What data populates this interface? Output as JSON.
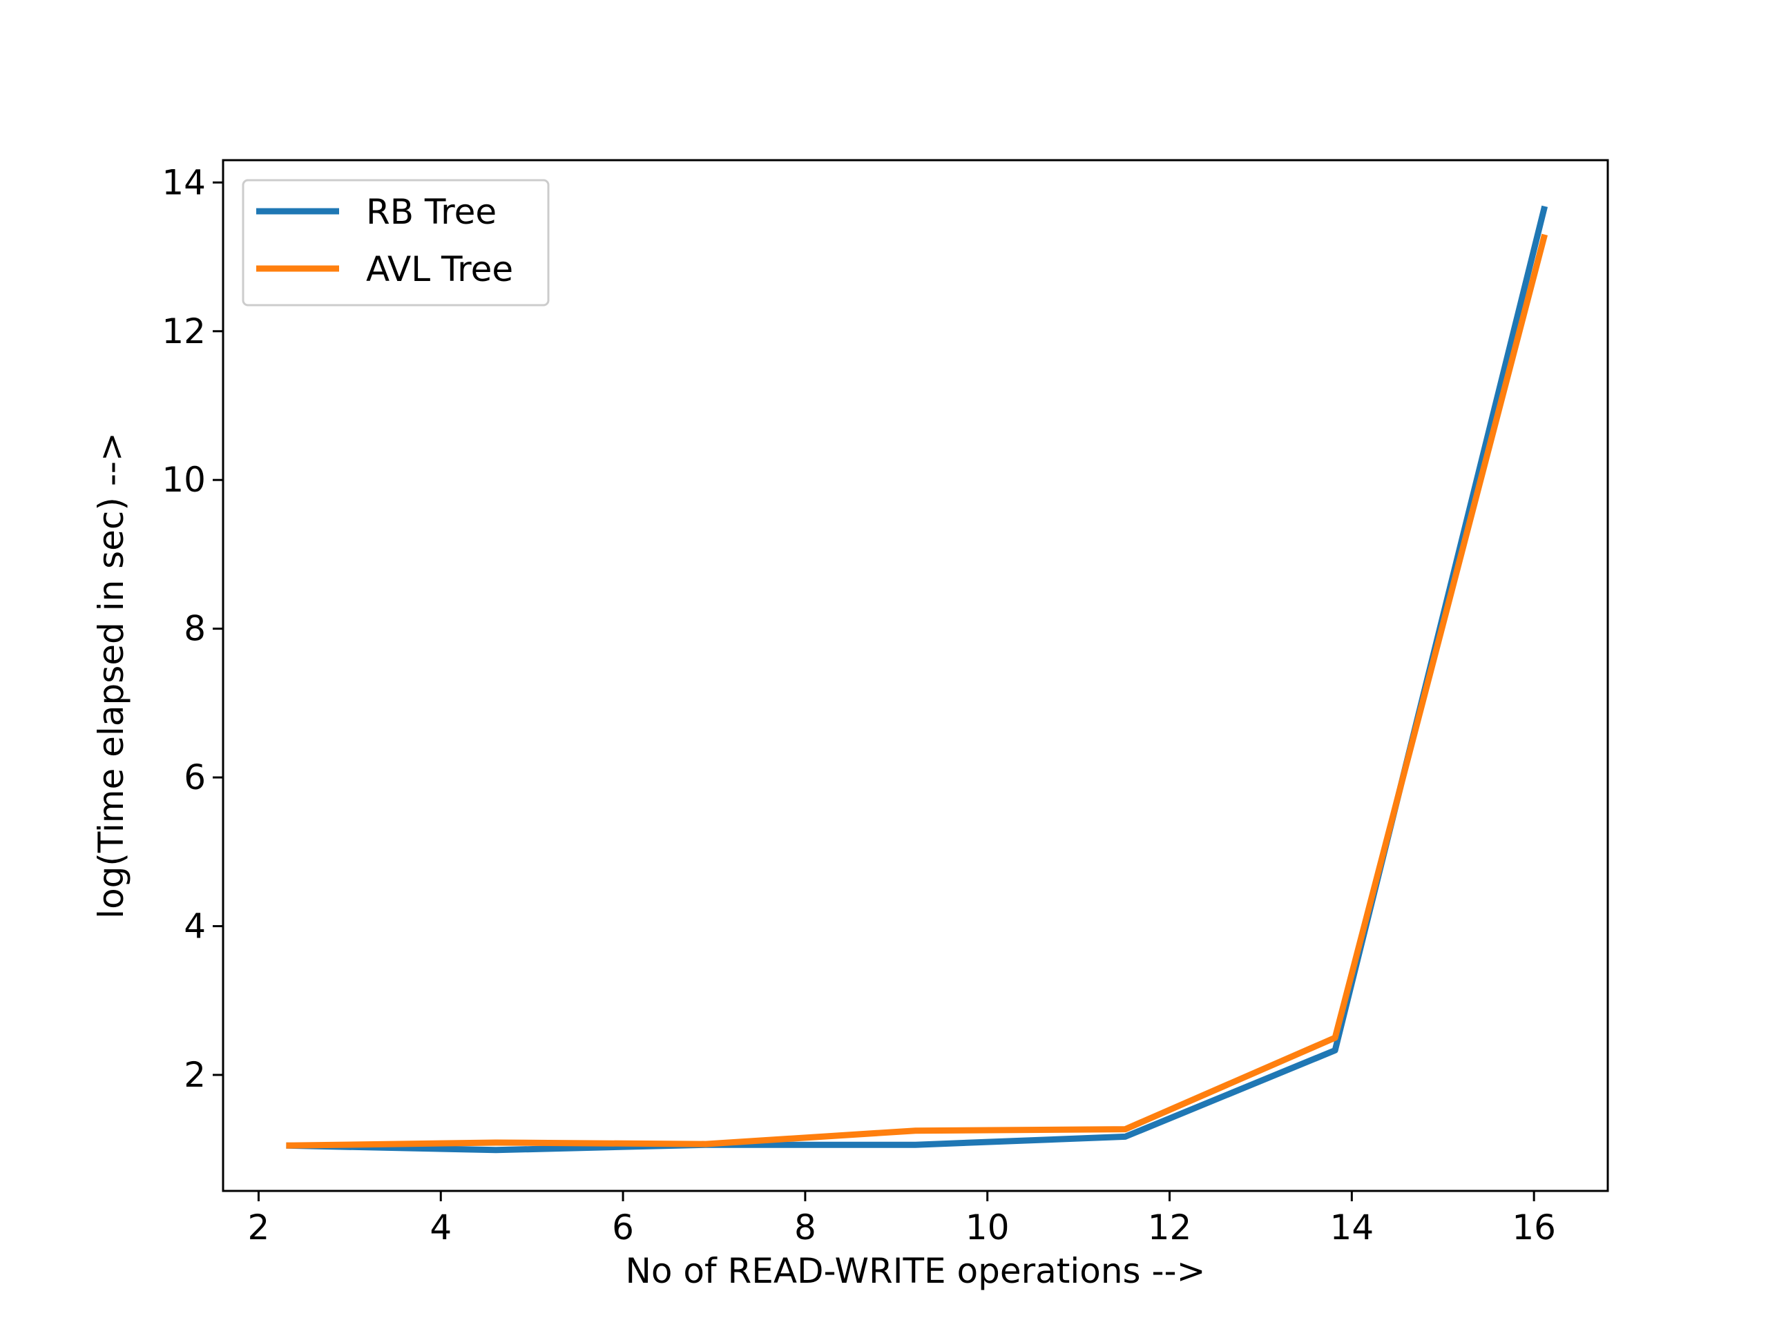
{
  "chart_data": {
    "type": "line",
    "title": "",
    "xlabel": "No of READ-WRITE operations -->",
    "ylabel": "log(Time elapsed in sec) -->",
    "xlim": [
      1.61,
      16.81
    ],
    "ylim": [
      0.44,
      14.3
    ],
    "xticks": [
      2,
      4,
      6,
      8,
      10,
      12,
      14,
      16
    ],
    "yticks": [
      2,
      4,
      6,
      8,
      10,
      12,
      14
    ],
    "grid": false,
    "legend": "top-left",
    "series": [
      {
        "name": "RB Tree",
        "color": "#1f77b4",
        "x": [
          2.303,
          4.605,
          6.908,
          9.21,
          11.513,
          13.816,
          16.118
        ],
        "y": [
          1.05,
          0.99,
          1.06,
          1.06,
          1.17,
          2.33,
          13.68
        ]
      },
      {
        "name": "AVL Tree",
        "color": "#ff7f0e",
        "x": [
          2.303,
          4.605,
          6.908,
          9.21,
          11.513,
          13.816,
          16.118
        ],
        "y": [
          1.05,
          1.09,
          1.07,
          1.25,
          1.27,
          2.5,
          13.3
        ]
      }
    ]
  }
}
